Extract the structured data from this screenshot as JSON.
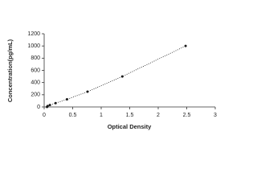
{
  "chart_data": {
    "type": "scatter",
    "x_label": "Optical Density",
    "y_label": "Concentration(pg/mL)",
    "series": [
      {
        "color": "#1a1a1a",
        "line_style": "dotted",
        "x": [
          0.05,
          0.06,
          0.1,
          0.2,
          0.4,
          0.76,
          1.37,
          2.48
        ],
        "values": [
          0,
          15.6,
          31.25,
          62.5,
          125,
          250,
          500,
          1000
        ]
      }
    ],
    "xlim": [
      0,
      3
    ],
    "xticks": [
      0,
      0.5,
      1,
      1.5,
      2,
      2.5,
      3
    ],
    "ylim": [
      0,
      1200
    ],
    "yticks": [
      0,
      200,
      400,
      600,
      800,
      1000,
      1200
    ]
  }
}
